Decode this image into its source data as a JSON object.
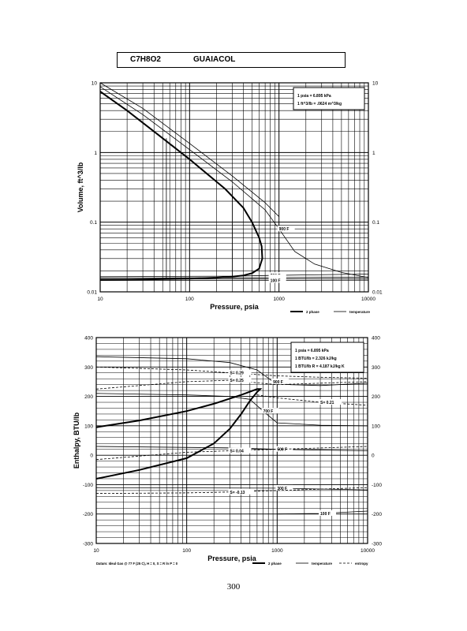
{
  "header": {
    "formula": "C7H8O2",
    "name": "GUAIACOL"
  },
  "page_number": "300",
  "colors": {
    "line": "#000000",
    "grid": "#000000",
    "background": "#ffffff"
  },
  "chart_data": [
    {
      "type": "line",
      "id": "volume",
      "xlabel": "Pressure,  psia",
      "ylabel": "Volume, ft^3/lb",
      "xscale": "log",
      "yscale": "log",
      "xlim": [
        10,
        10000
      ],
      "ylim": [
        0.01,
        10
      ],
      "xticks": [
        "10",
        "100",
        "1000",
        "10000"
      ],
      "yticks": [
        "0.01",
        "0.1",
        "1",
        "10"
      ],
      "y_right_ticks": [
        "0.01",
        "0.1",
        "1",
        "10"
      ],
      "grid": true,
      "notes": [
        "1 psia = 6.895 kPa",
        "1 ft^3/lb = .0624 m^3/kg"
      ],
      "legend": [
        "2 phase",
        "temperature"
      ],
      "legend_position": "bottom-right",
      "series": [
        {
          "style": "2phase",
          "points": [
            [
              10,
              0.0148
            ],
            [
              30,
              0.0151
            ],
            [
              100,
              0.0155
            ],
            [
              200,
              0.016
            ],
            [
              300,
              0.0165
            ],
            [
              400,
              0.0172
            ],
            [
              500,
              0.0185
            ],
            [
              600,
              0.0215
            ],
            [
              650,
              0.03
            ],
            [
              640,
              0.045
            ],
            [
              600,
              0.06
            ],
            [
              500,
              0.1
            ],
            [
              400,
              0.16
            ],
            [
              250,
              0.3
            ],
            [
              100,
              0.8
            ],
            [
              40,
              2
            ],
            [
              20,
              4
            ],
            [
              10,
              7.5
            ]
          ]
        },
        {
          "style": "temperature",
          "label": "900 F",
          "points": [
            [
              10,
              8.8
            ],
            [
              30,
              3.5
            ],
            [
              100,
              1.1
            ],
            [
              300,
              0.38
            ],
            [
              700,
              0.15
            ],
            [
              1000,
              0.08
            ],
            [
              1500,
              0.038
            ],
            [
              2500,
              0.025
            ],
            [
              5000,
              0.019
            ],
            [
              10000,
              0.016
            ]
          ]
        },
        {
          "style": "temperature",
          "points": [
            [
              10,
              10
            ],
            [
              30,
              4.3
            ],
            [
              100,
              1.35
            ],
            [
              300,
              0.46
            ],
            [
              700,
              0.19
            ],
            [
              1000,
              0.12
            ]
          ]
        },
        {
          "style": "temperature",
          "label": "700 F",
          "points": [
            [
              10,
              0.0165
            ],
            [
              300,
              0.0168
            ],
            [
              800,
              0.0172
            ],
            [
              2000,
              0.0175
            ],
            [
              10000,
              0.018
            ]
          ]
        },
        {
          "style": "temperature",
          "label": "500 F",
          "points": [
            [
              10,
              0.0158
            ],
            [
              800,
              0.016
            ],
            [
              10000,
              0.0163
            ]
          ]
        },
        {
          "style": "temperature",
          "label": "300 F",
          "points": [
            [
              10,
              0.0152
            ],
            [
              800,
              0.0153
            ],
            [
              10000,
              0.0154
            ]
          ]
        },
        {
          "style": "temperature",
          "label": "100 F",
          "points": [
            [
              10,
              0.0146
            ],
            [
              800,
              0.0146
            ],
            [
              10000,
              0.0147
            ]
          ]
        },
        {
          "style": "temperature",
          "points": [
            [
              55,
              0.015
            ],
            [
              55,
              1.6
            ]
          ]
        },
        {
          "style": "temperature",
          "points": [
            [
              300,
              0.016
            ],
            [
              300,
              0.33
            ]
          ]
        }
      ]
    },
    {
      "type": "line",
      "id": "enthalpy",
      "xlabel": "Pressure,  psia",
      "ylabel": "Enthalpy, BTU/lb",
      "xscale": "log",
      "xlim": [
        10,
        10000
      ],
      "ylim": [
        -300,
        400
      ],
      "xticks": [
        "10",
        "100",
        "1000",
        "10000"
      ],
      "yticks": [
        "-300",
        "-200",
        "-100",
        "0",
        "100",
        "200",
        "300",
        "400"
      ],
      "y_right_ticks": [
        "-300",
        "-200",
        "-100",
        "0",
        "100",
        "200",
        "300",
        "400"
      ],
      "grid": true,
      "notes": [
        "1 psia = 6.895 kPa",
        "1 BTU/lb = 2.326 kJ/kg",
        "1 BTU/lb R = 4.187 kJ/kg K"
      ],
      "legend": [
        "2 phase",
        "temperature",
        "entropy"
      ],
      "legend_position": "bottom-right",
      "footnote": "Datum: Ideal Gas @ 77 F (25 C),  H = 0,  S = R ln P = 0",
      "series": [
        {
          "style": "2phase",
          "points": [
            [
              10,
              -80
            ],
            [
              30,
              -50
            ],
            [
              100,
              -10
            ],
            [
              200,
              40
            ],
            [
              300,
              90
            ],
            [
              400,
              140
            ],
            [
              500,
              185
            ],
            [
              600,
              215
            ],
            [
              650,
              225
            ],
            [
              600,
              225
            ],
            [
              400,
              205
            ],
            [
              200,
              175
            ],
            [
              100,
              150
            ],
            [
              30,
              118
            ],
            [
              10,
              95
            ]
          ]
        },
        {
          "style": "temperature",
          "label": "900 F",
          "points": [
            [
              10,
              335
            ],
            [
              100,
              328
            ],
            [
              300,
              315
            ],
            [
              600,
              290
            ],
            [
              900,
              250
            ],
            [
              1400,
              240
            ],
            [
              3000,
              237
            ],
            [
              10000,
              245
            ]
          ]
        },
        {
          "style": "temperature",
          "label": "700 F",
          "points": [
            [
              10,
              210
            ],
            [
              100,
              205
            ],
            [
              300,
              200
            ],
            [
              500,
              190
            ],
            [
              700,
              150
            ],
            [
              1000,
              110
            ],
            [
              3000,
              102
            ],
            [
              10000,
              100
            ]
          ]
        },
        {
          "style": "temperature",
          "label": "500 F",
          "points": [
            [
              10,
              30
            ],
            [
              300,
              25
            ],
            [
              1000,
              20
            ],
            [
              10000,
              15
            ]
          ]
        },
        {
          "style": "temperature",
          "label": "300 F",
          "points": [
            [
              10,
              -110
            ],
            [
              1000,
              -112
            ],
            [
              10000,
              -118
            ]
          ]
        },
        {
          "style": "temperature",
          "label": "100 F",
          "points": [
            [
              1000,
              -200
            ],
            [
              3000,
              -198
            ],
            [
              10000,
              -190
            ]
          ]
        },
        {
          "style": "entropy",
          "label": "S= 0.29",
          "points": [
            [
              10,
              300
            ],
            [
              100,
              290
            ],
            [
              300,
              280
            ],
            [
              1000,
              270
            ],
            [
              3000,
              265
            ],
            [
              10000,
              262
            ]
          ]
        },
        {
          "style": "entropy",
          "label": "S= 0.25",
          "points": [
            [
              10,
              225
            ],
            [
              100,
              250
            ],
            [
              300,
              255
            ],
            [
              1000,
              240
            ],
            [
              3000,
              245
            ],
            [
              10000,
              250
            ]
          ]
        },
        {
          "style": "entropy",
          "label": "S= 0.21",
          "points": [
            [
              600,
              205
            ],
            [
              1000,
              195
            ],
            [
              3000,
              180
            ],
            [
              10000,
              170
            ]
          ]
        },
        {
          "style": "entropy",
          "label": "S= 0.04",
          "points": [
            [
              10,
              -15
            ],
            [
              100,
              10
            ],
            [
              300,
              15
            ],
            [
              1000,
              20
            ],
            [
              10000,
              30
            ]
          ]
        },
        {
          "style": "entropy",
          "label": "S= -0.13",
          "points": [
            [
              10,
              -130
            ],
            [
              100,
              -128
            ],
            [
              300,
              -125
            ],
            [
              1000,
              -120
            ],
            [
              10000,
              -110
            ]
          ]
        }
      ]
    }
  ]
}
